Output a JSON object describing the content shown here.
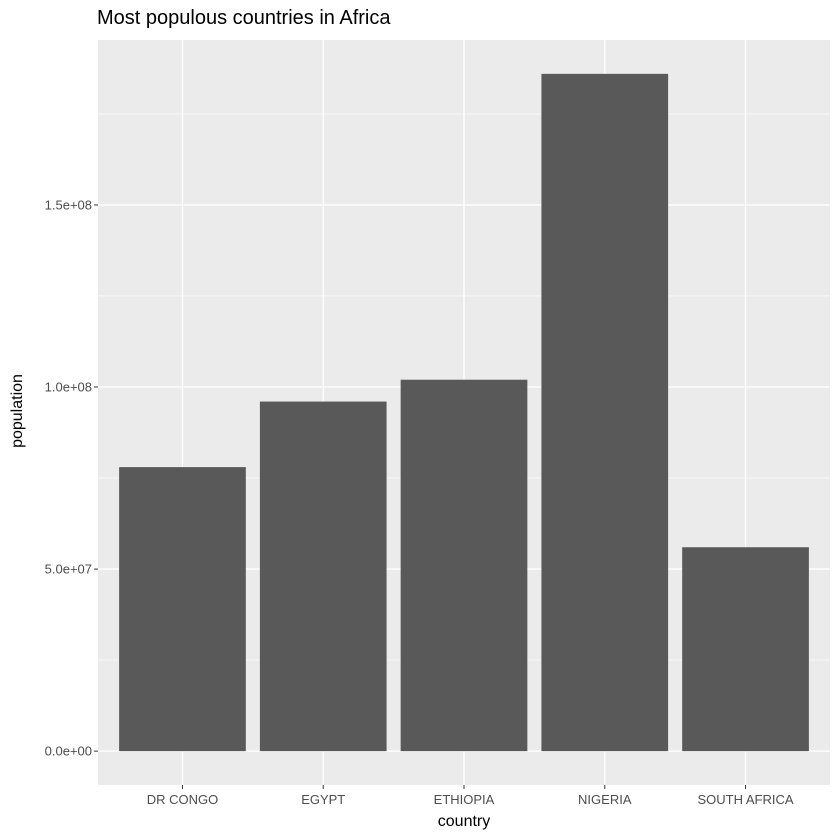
{
  "chart_data": {
    "type": "bar",
    "title": "Most populous countries in Africa",
    "xlabel": "country",
    "ylabel": "population",
    "categories": [
      "DR CONGO",
      "EGYPT",
      "ETHIOPIA",
      "NIGERIA",
      "SOUTH AFRICA"
    ],
    "values": [
      78000000,
      96000000,
      102000000,
      186000000,
      56000000
    ],
    "y_ticks": [
      0,
      50000000,
      100000000,
      150000000
    ],
    "y_tick_labels": [
      "0.0e+00",
      "5.0e+07",
      "1.0e+08",
      "1.5e+08"
    ],
    "ylim": [
      -9300000,
      195300000
    ],
    "grid": true,
    "colors": {
      "panel_background": "#ebebeb",
      "grid_major": "#ffffff",
      "bar_fill": "#595959"
    }
  }
}
